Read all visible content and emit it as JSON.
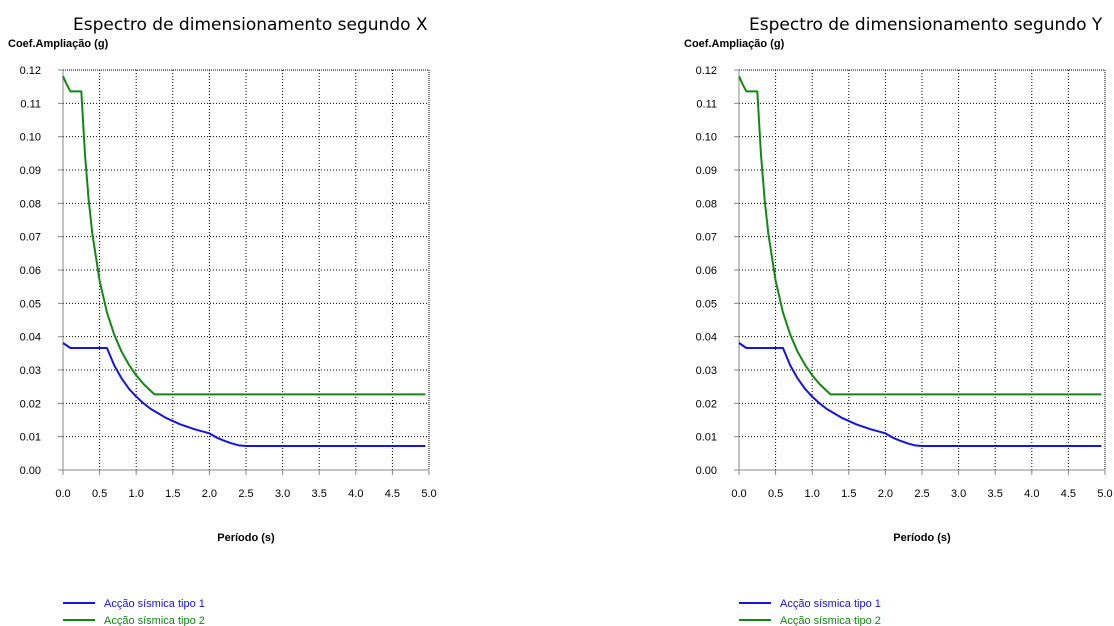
{
  "colors": {
    "series1": "#1414e6",
    "series2": "#128812",
    "grid": "#000000",
    "axis": "#888888"
  },
  "chart_data": [
    {
      "type": "line",
      "title": "Espectro de dimensionamento segundo X",
      "ylabel": "Coef.Ampliação (g)",
      "xlabel": "Período (s)",
      "xlim": [
        0,
        5
      ],
      "ylim": [
        0,
        0.12
      ],
      "xticks": [
        "0.0",
        "0.5",
        "1.0",
        "1.5",
        "2.0",
        "2.5",
        "3.0",
        "3.5",
        "4.0",
        "4.5",
        "5.0"
      ],
      "yticks": [
        "0.00",
        "0.01",
        "0.02",
        "0.03",
        "0.04",
        "0.05",
        "0.06",
        "0.07",
        "0.08",
        "0.09",
        "0.10",
        "0.11",
        "0.12"
      ],
      "grid": true,
      "legend": "bottom-left",
      "series": [
        {
          "name": "Acção sísmica tipo 1",
          "x": [
            0,
            0.1,
            0.6,
            0.7,
            0.8,
            0.9,
            1.0,
            1.1,
            1.2,
            1.4,
            1.6,
            1.8,
            2.0,
            2.1,
            2.2,
            2.3,
            2.4,
            2.5,
            4.95
          ],
          "y": [
            0.0381,
            0.0366,
            0.0366,
            0.0314,
            0.0275,
            0.0244,
            0.022,
            0.02,
            0.0183,
            0.0157,
            0.0137,
            0.0122,
            0.011,
            0.0097,
            0.0088,
            0.008,
            0.0074,
            0.0072,
            0.0072
          ]
        },
        {
          "name": "Acção sísmica tipo 2",
          "x": [
            0,
            0.05,
            0.1,
            0.25,
            0.3,
            0.35,
            0.4,
            0.5,
            0.6,
            0.7,
            0.8,
            0.9,
            1.0,
            1.1,
            1.2,
            1.25,
            4.95
          ],
          "y": [
            0.1181,
            0.1157,
            0.1136,
            0.1136,
            0.0947,
            0.0812,
            0.071,
            0.0568,
            0.0473,
            0.0406,
            0.0355,
            0.0316,
            0.0284,
            0.0258,
            0.0237,
            0.0227,
            0.0227
          ]
        }
      ]
    },
    {
      "type": "line",
      "title": "Espectro de dimensionamento segundo Y",
      "ylabel": "Coef.Ampliação (g)",
      "xlabel": "Período (s)",
      "xlim": [
        0,
        5
      ],
      "ylim": [
        0,
        0.12
      ],
      "xticks": [
        "0.0",
        "0.5",
        "1.0",
        "1.5",
        "2.0",
        "2.5",
        "3.0",
        "3.5",
        "4.0",
        "4.5",
        "5.0"
      ],
      "yticks": [
        "0.00",
        "0.01",
        "0.02",
        "0.03",
        "0.04",
        "0.05",
        "0.06",
        "0.07",
        "0.08",
        "0.09",
        "0.10",
        "0.11",
        "0.12"
      ],
      "grid": true,
      "legend": "bottom-left",
      "series": [
        {
          "name": "Acção sísmica tipo 1",
          "x": [
            0,
            0.1,
            0.6,
            0.7,
            0.8,
            0.9,
            1.0,
            1.1,
            1.2,
            1.4,
            1.6,
            1.8,
            2.0,
            2.1,
            2.2,
            2.3,
            2.4,
            2.5,
            4.95
          ],
          "y": [
            0.0381,
            0.0366,
            0.0366,
            0.0314,
            0.0275,
            0.0244,
            0.022,
            0.02,
            0.0183,
            0.0157,
            0.0137,
            0.0122,
            0.011,
            0.0097,
            0.0088,
            0.008,
            0.0074,
            0.0072,
            0.0072
          ]
        },
        {
          "name": "Acção sísmica tipo 2",
          "x": [
            0,
            0.05,
            0.1,
            0.25,
            0.3,
            0.35,
            0.4,
            0.5,
            0.6,
            0.7,
            0.8,
            0.9,
            1.0,
            1.1,
            1.2,
            1.25,
            4.95
          ],
          "y": [
            0.1181,
            0.1157,
            0.1136,
            0.1136,
            0.0947,
            0.0812,
            0.071,
            0.0568,
            0.0473,
            0.0406,
            0.0355,
            0.0316,
            0.0284,
            0.0258,
            0.0237,
            0.0227,
            0.0227
          ]
        }
      ]
    }
  ]
}
